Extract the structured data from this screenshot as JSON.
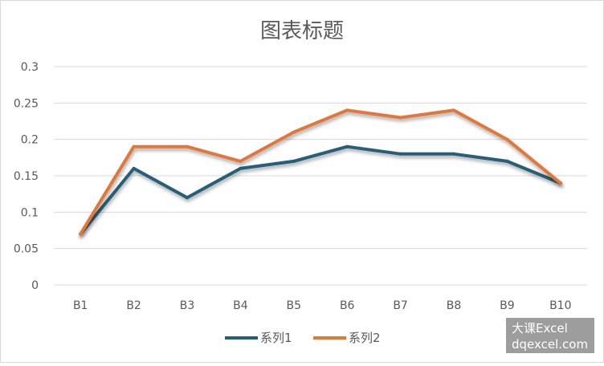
{
  "chart_data": {
    "type": "line",
    "title": "图表标题",
    "categories": [
      "B1",
      "B2",
      "B3",
      "B4",
      "B5",
      "B6",
      "B7",
      "B8",
      "B9",
      "B10"
    ],
    "series": [
      {
        "name": "系列1",
        "color": "#255e78",
        "values": [
          0.07,
          0.16,
          0.12,
          0.16,
          0.17,
          0.19,
          0.18,
          0.18,
          0.17,
          0.14
        ]
      },
      {
        "name": "系列2",
        "color": "#e0783a",
        "values": [
          0.07,
          0.19,
          0.19,
          0.17,
          0.21,
          0.24,
          0.23,
          0.24,
          0.2,
          0.14
        ]
      }
    ],
    "ylim": [
      0,
      0.3
    ],
    "yticks": [
      "0",
      "0.05",
      "0.1",
      "0.15",
      "0.2",
      "0.25",
      "0.3"
    ],
    "ytick_values": [
      0,
      0.05,
      0.1,
      0.15,
      0.2,
      0.25,
      0.3
    ],
    "grid": true,
    "legend_position": "bottom"
  },
  "watermark": {
    "line1": "大课Excel",
    "line2": "dqexcel.com"
  }
}
